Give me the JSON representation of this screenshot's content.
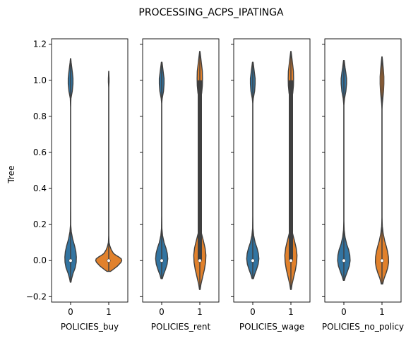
{
  "figure": {
    "title": "PROCESSING_ACPS_IPATINGA",
    "ylabel": "Tree"
  },
  "chart_data": {
    "type": "violin",
    "title": "PROCESSING_ACPS_IPATINGA",
    "ylabel": "Tree",
    "ylim": [
      -0.23,
      1.23
    ],
    "yticks": [
      -0.2,
      0.0,
      0.2,
      0.4,
      0.6,
      0.8,
      1.0,
      1.2
    ],
    "ytick_labels": [
      "−0.2",
      "0.0",
      "0.2",
      "0.4",
      "0.6",
      "0.8",
      "1.0",
      "1.2"
    ],
    "panels": [
      {
        "xlabel": "POLICIES_buy",
        "categories": [
          "0",
          "1"
        ],
        "violins": [
          {
            "category": "0",
            "color": "#3274a1",
            "min": -0.12,
            "max": 1.12,
            "median": 0.0,
            "q1": 0.0,
            "q3": 0.0,
            "profile": [
              [
                -0.12,
                0.02
              ],
              [
                -0.1,
                0.06
              ],
              [
                -0.07,
                0.15
              ],
              [
                -0.04,
                0.27
              ],
              [
                -0.01,
                0.33
              ],
              [
                0.02,
                0.34
              ],
              [
                0.05,
                0.31
              ],
              [
                0.08,
                0.24
              ],
              [
                0.12,
                0.12
              ],
              [
                0.16,
                0.04
              ],
              [
                0.2,
                0.006
              ],
              [
                0.3,
                0.0
              ],
              [
                0.85,
                0.0
              ],
              [
                0.9,
                0.02
              ],
              [
                0.94,
                0.1
              ],
              [
                0.98,
                0.14
              ],
              [
                1.01,
                0.14
              ],
              [
                1.04,
                0.11
              ],
              [
                1.07,
                0.07
              ],
              [
                1.1,
                0.03
              ],
              [
                1.12,
                0.01
              ]
            ]
          },
          {
            "category": "1",
            "color": "#e1812c",
            "min": -0.06,
            "max": 1.05,
            "median": 0.0,
            "q1": 0.0,
            "q3": 0.0,
            "profile": [
              [
                -0.06,
                0.1
              ],
              [
                -0.05,
                0.25
              ],
              [
                -0.03,
                0.52
              ],
              [
                -0.01,
                0.72
              ],
              [
                0.0,
                0.77
              ],
              [
                0.01,
                0.74
              ],
              [
                0.02,
                0.6
              ],
              [
                0.03,
                0.42
              ],
              [
                0.04,
                0.28
              ],
              [
                0.06,
                0.15
              ],
              [
                0.08,
                0.07
              ],
              [
                0.1,
                0.02
              ],
              [
                0.14,
                0.0
              ],
              [
                0.96,
                0.0
              ],
              [
                0.99,
                0.02
              ],
              [
                1.01,
                0.02
              ],
              [
                1.05,
                0.0
              ]
            ]
          }
        ]
      },
      {
        "xlabel": "POLICIES_rent",
        "categories": [
          "0",
          "1"
        ],
        "violins": [
          {
            "category": "0",
            "color": "#3274a1",
            "min": -0.1,
            "max": 1.1,
            "median": 0.0,
            "q1": 0.0,
            "q3": 0.0,
            "profile": [
              [
                -0.1,
                0.04
              ],
              [
                -0.08,
                0.1
              ],
              [
                -0.05,
                0.22
              ],
              [
                -0.02,
                0.32
              ],
              [
                0.01,
                0.36
              ],
              [
                0.04,
                0.33
              ],
              [
                0.07,
                0.25
              ],
              [
                0.1,
                0.14
              ],
              [
                0.14,
                0.05
              ],
              [
                0.18,
                0.01
              ],
              [
                0.25,
                0.0
              ],
              [
                0.87,
                0.0
              ],
              [
                0.9,
                0.03
              ],
              [
                0.94,
                0.11
              ],
              [
                0.98,
                0.14
              ],
              [
                1.01,
                0.14
              ],
              [
                1.04,
                0.1
              ],
              [
                1.07,
                0.06
              ],
              [
                1.1,
                0.02
              ]
            ]
          },
          {
            "category": "1",
            "color": "#e1812c",
            "min": -0.16,
            "max": 1.16,
            "median": 0.0,
            "q1": 0.0,
            "q3": 1.0,
            "profile": [
              [
                -0.16,
                0.02
              ],
              [
                -0.13,
                0.07
              ],
              [
                -0.09,
                0.17
              ],
              [
                -0.05,
                0.27
              ],
              [
                -0.01,
                0.34
              ],
              [
                0.03,
                0.36
              ],
              [
                0.07,
                0.31
              ],
              [
                0.11,
                0.21
              ],
              [
                0.15,
                0.1
              ],
              [
                0.19,
                0.04
              ],
              [
                0.23,
                0.01
              ],
              [
                0.3,
                0.0
              ],
              [
                0.85,
                0.0
              ],
              [
                0.89,
                0.04
              ],
              [
                0.93,
                0.11
              ],
              [
                0.97,
                0.15
              ],
              [
                1.01,
                0.16
              ],
              [
                1.05,
                0.15
              ],
              [
                1.09,
                0.1
              ],
              [
                1.13,
                0.05
              ],
              [
                1.16,
                0.01
              ]
            ]
          }
        ]
      },
      {
        "xlabel": "POLICIES_wage",
        "categories": [
          "0",
          "1"
        ],
        "violins": [
          {
            "category": "0",
            "color": "#3274a1",
            "min": -0.1,
            "max": 1.1,
            "median": 0.0,
            "q1": 0.0,
            "q3": 0.0,
            "profile": [
              [
                -0.1,
                0.04
              ],
              [
                -0.08,
                0.1
              ],
              [
                -0.05,
                0.22
              ],
              [
                -0.02,
                0.32
              ],
              [
                0.01,
                0.36
              ],
              [
                0.04,
                0.33
              ],
              [
                0.07,
                0.25
              ],
              [
                0.1,
                0.14
              ],
              [
                0.14,
                0.05
              ],
              [
                0.18,
                0.01
              ],
              [
                0.25,
                0.0
              ],
              [
                0.87,
                0.0
              ],
              [
                0.9,
                0.03
              ],
              [
                0.94,
                0.11
              ],
              [
                0.98,
                0.14
              ],
              [
                1.01,
                0.14
              ],
              [
                1.04,
                0.1
              ],
              [
                1.07,
                0.06
              ],
              [
                1.1,
                0.02
              ]
            ]
          },
          {
            "category": "1",
            "color": "#e1812c",
            "min": -0.16,
            "max": 1.16,
            "median": 0.0,
            "q1": 0.0,
            "q3": 1.0,
            "profile": [
              [
                -0.16,
                0.02
              ],
              [
                -0.13,
                0.07
              ],
              [
                -0.09,
                0.17
              ],
              [
                -0.05,
                0.27
              ],
              [
                -0.01,
                0.34
              ],
              [
                0.03,
                0.36
              ],
              [
                0.07,
                0.31
              ],
              [
                0.11,
                0.21
              ],
              [
                0.15,
                0.1
              ],
              [
                0.19,
                0.04
              ],
              [
                0.23,
                0.01
              ],
              [
                0.3,
                0.0
              ],
              [
                0.85,
                0.0
              ],
              [
                0.89,
                0.04
              ],
              [
                0.93,
                0.11
              ],
              [
                0.97,
                0.15
              ],
              [
                1.01,
                0.16
              ],
              [
                1.05,
                0.15
              ],
              [
                1.09,
                0.1
              ],
              [
                1.13,
                0.05
              ],
              [
                1.16,
                0.01
              ]
            ]
          }
        ]
      },
      {
        "xlabel": "POLICIES_no_policy",
        "categories": [
          "0",
          "1"
        ],
        "violins": [
          {
            "category": "0",
            "color": "#3274a1",
            "min": -0.11,
            "max": 1.11,
            "median": 0.0,
            "q1": 0.0,
            "q3": 0.0,
            "profile": [
              [
                -0.11,
                0.03
              ],
              [
                -0.09,
                0.09
              ],
              [
                -0.06,
                0.21
              ],
              [
                -0.03,
                0.32
              ],
              [
                0.0,
                0.37
              ],
              [
                0.03,
                0.35
              ],
              [
                0.06,
                0.28
              ],
              [
                0.09,
                0.17
              ],
              [
                0.13,
                0.07
              ],
              [
                0.17,
                0.02
              ],
              [
                0.22,
                0.0
              ],
              [
                0.86,
                0.0
              ],
              [
                0.9,
                0.04
              ],
              [
                0.94,
                0.12
              ],
              [
                0.98,
                0.16
              ],
              [
                1.01,
                0.16
              ],
              [
                1.04,
                0.12
              ],
              [
                1.07,
                0.07
              ],
              [
                1.11,
                0.02
              ]
            ]
          },
          {
            "category": "1",
            "color": "#e1812c",
            "min": -0.13,
            "max": 1.13,
            "median": 0.0,
            "q1": 0.0,
            "q3": 0.0,
            "profile": [
              [
                -0.13,
                0.04
              ],
              [
                -0.1,
                0.12
              ],
              [
                -0.07,
                0.24
              ],
              [
                -0.04,
                0.34
              ],
              [
                -0.01,
                0.39
              ],
              [
                0.02,
                0.38
              ],
              [
                0.05,
                0.33
              ],
              [
                0.08,
                0.25
              ],
              [
                0.11,
                0.16
              ],
              [
                0.15,
                0.07
              ],
              [
                0.19,
                0.02
              ],
              [
                0.24,
                0.0
              ],
              [
                0.84,
                0.0
              ],
              [
                0.87,
                0.02
              ],
              [
                0.9,
                0.05
              ],
              [
                0.94,
                0.09
              ],
              [
                0.98,
                0.11
              ],
              [
                1.02,
                0.11
              ],
              [
                1.06,
                0.08
              ],
              [
                1.1,
                0.04
              ],
              [
                1.13,
                0.01
              ]
            ]
          }
        ]
      }
    ]
  }
}
